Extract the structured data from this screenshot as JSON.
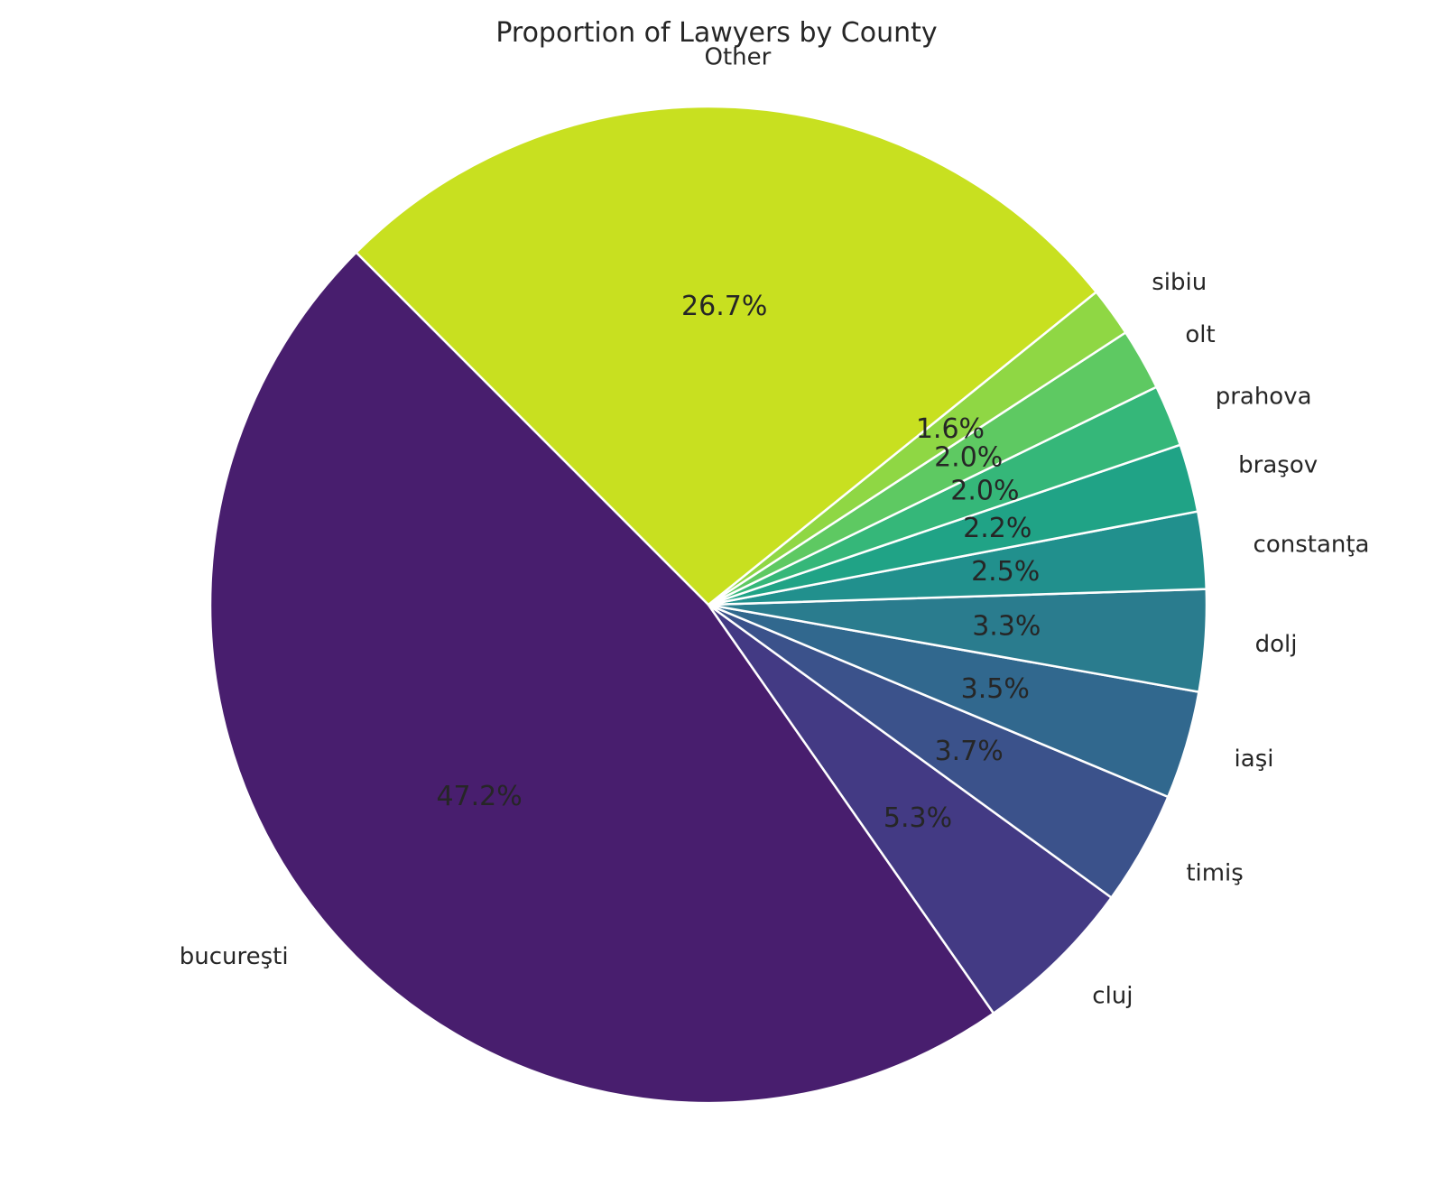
{
  "chart_data": {
    "type": "pie",
    "title": "Proportion of Lawyers by County",
    "start_angle_deg": 135,
    "direction": "counterclockwise",
    "slices": [
      {
        "label": "bucureşti",
        "value": 47.2,
        "pct_text": "47.2%",
        "color": "#481e6e"
      },
      {
        "label": "cluj",
        "value": 5.3,
        "pct_text": "5.3%",
        "color": "#433a84"
      },
      {
        "label": "timiş",
        "value": 3.7,
        "pct_text": "3.7%",
        "color": "#3b528b"
      },
      {
        "label": "iaşi",
        "value": 3.5,
        "pct_text": "3.5%",
        "color": "#31688e"
      },
      {
        "label": "dolj",
        "value": 3.3,
        "pct_text": "3.3%",
        "color": "#2a7c8e"
      },
      {
        "label": "constanţa",
        "value": 2.5,
        "pct_text": "2.5%",
        "color": "#21908d"
      },
      {
        "label": "braşov",
        "value": 2.2,
        "pct_text": "2.2%",
        "color": "#20a386"
      },
      {
        "label": "prahova",
        "value": 2.0,
        "pct_text": "2.0%",
        "color": "#35b779"
      },
      {
        "label": "olt",
        "value": 2.0,
        "pct_text": "2.0%",
        "color": "#5ec962"
      },
      {
        "label": "sibiu",
        "value": 1.6,
        "pct_text": "1.6%",
        "color": "#8fd744"
      },
      {
        "label": "Other",
        "value": 26.7,
        "pct_text": "26.7%",
        "color": "#c8e020"
      }
    ]
  }
}
